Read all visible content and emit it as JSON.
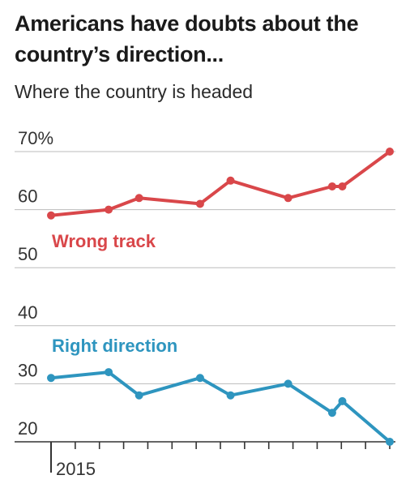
{
  "chart_data": {
    "type": "line",
    "title": "Americans have doubts about the country’s direction...",
    "subtitle": "Where the country is headed",
    "y_ticks": [
      {
        "value": 70,
        "label": "70%"
      },
      {
        "value": 60,
        "label": "60"
      },
      {
        "value": 50,
        "label": "50"
      },
      {
        "value": 40,
        "label": "40"
      },
      {
        "value": 30,
        "label": "30"
      },
      {
        "value": 20,
        "label": "20"
      }
    ],
    "ylim": [
      20,
      70
    ],
    "x_label_text": "2015",
    "x_tick_count": 15,
    "grid": true,
    "colors": {
      "wrong": "#d9474a",
      "right": "#2e95bf",
      "grid": "#bbbbbb",
      "axis": "#333333"
    },
    "series": [
      {
        "name": "Wrong track",
        "x": [
          0.0,
          0.17,
          0.26,
          0.44,
          0.53,
          0.7,
          0.83,
          0.86,
          1.0
        ],
        "values": [
          59,
          60,
          62,
          61,
          65,
          62,
          64,
          64,
          70
        ]
      },
      {
        "name": "Right direction",
        "x": [
          0.0,
          0.17,
          0.26,
          0.44,
          0.53,
          0.7,
          0.83,
          0.86,
          1.0
        ],
        "values": [
          31,
          32,
          28,
          31,
          28,
          30,
          25,
          27,
          20
        ]
      }
    ]
  }
}
